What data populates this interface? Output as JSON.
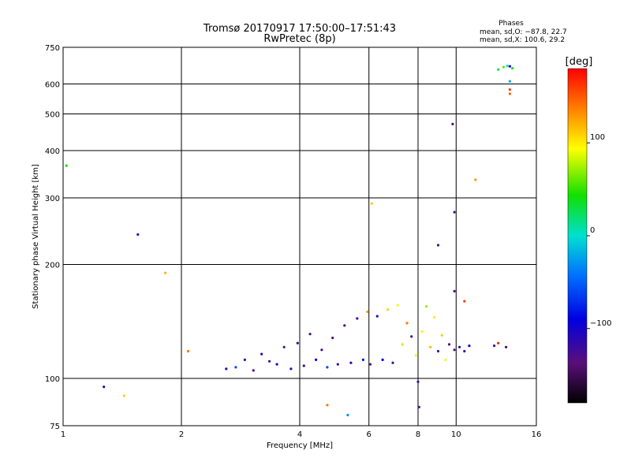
{
  "chart_data": {
    "type": "scatter",
    "title": "Tromsø 20170917 17:50:00–17:51:43",
    "subtitle": "RwPretec (8p)",
    "xlabel": "Frequency [MHz]",
    "ylabel": "Stationary phase Virtual Height [km]",
    "x_scale": "log",
    "y_scale": "log",
    "xlim": [
      1,
      16
    ],
    "ylim": [
      75,
      750
    ],
    "x_ticks": [
      1,
      2,
      4,
      6,
      8,
      10,
      16
    ],
    "x_tick_labels": [
      "1",
      "2",
      "4",
      "6",
      "8",
      "10",
      "16"
    ],
    "y_ticks": [
      75,
      100,
      200,
      300,
      400,
      500,
      600,
      750
    ],
    "y_tick_labels": [
      "75",
      "100",
      "200",
      "300",
      "400",
      "500",
      "600",
      "750"
    ],
    "grid": true,
    "phases_box": {
      "title": "Phases",
      "line_o": "mean, sd,O: −87.8, 22.7",
      "line_x": "mean, sd,X: 100.6, 29.2"
    },
    "colorbar": {
      "label": "[deg]",
      "ticks": [
        "100",
        "0",
        "−100"
      ],
      "tick_values": [
        100,
        0,
        -100
      ],
      "range": [
        -180,
        180
      ]
    },
    "series": [
      {
        "points": [
          [
            1.02,
            365,
            40
          ],
          [
            1.27,
            95,
            -110
          ],
          [
            1.55,
            240,
            -120
          ],
          [
            1.43,
            90,
            110
          ],
          [
            1.82,
            190,
            120
          ],
          [
            2.08,
            118,
            140
          ],
          [
            4.7,
            85,
            140
          ],
          [
            5.3,
            80,
            -30
          ],
          [
            6.1,
            290,
            110
          ],
          [
            8.0,
            98,
            -120
          ],
          [
            8.05,
            84,
            -130
          ],
          [
            9.0,
            225,
            -140
          ],
          [
            9.8,
            470,
            -140
          ],
          [
            9.9,
            275,
            -130
          ],
          [
            9.9,
            170,
            -140
          ],
          [
            10.5,
            160,
            160
          ],
          [
            11.2,
            335,
            130
          ],
          [
            12.8,
            655,
            20
          ],
          [
            13.2,
            665,
            60
          ],
          [
            13.5,
            670,
            0
          ],
          [
            13.7,
            668,
            -100
          ],
          [
            13.9,
            660,
            40
          ],
          [
            13.7,
            610,
            -20
          ],
          [
            13.7,
            580,
            160
          ],
          [
            13.7,
            565,
            150
          ],
          [
            12.5,
            122,
            -120
          ],
          [
            12.8,
            124,
            170
          ],
          [
            13.4,
            121,
            -150
          ],
          [
            2.6,
            106,
            -110
          ],
          [
            2.75,
            107,
            -60
          ],
          [
            2.9,
            112,
            -120
          ],
          [
            3.05,
            105,
            -130
          ],
          [
            3.2,
            116,
            -110
          ],
          [
            3.35,
            111,
            -120
          ],
          [
            3.5,
            109,
            -100
          ],
          [
            3.65,
            121,
            -130
          ],
          [
            3.8,
            106,
            -110
          ],
          [
            3.95,
            124,
            -120
          ],
          [
            4.1,
            108,
            -130
          ],
          [
            4.25,
            131,
            -140
          ],
          [
            4.4,
            112,
            -100
          ],
          [
            4.55,
            119,
            -120
          ],
          [
            4.7,
            107,
            -60
          ],
          [
            4.85,
            128,
            -130
          ],
          [
            5.0,
            109,
            -120
          ],
          [
            5.2,
            138,
            -140
          ],
          [
            5.4,
            110,
            -110
          ],
          [
            5.6,
            144,
            -120
          ],
          [
            5.8,
            112,
            -80
          ],
          [
            5.95,
            150,
            130
          ],
          [
            6.05,
            109,
            -130
          ],
          [
            6.3,
            146,
            -110
          ],
          [
            6.5,
            112,
            -90
          ],
          [
            6.7,
            152,
            110
          ],
          [
            6.9,
            110,
            -120
          ],
          [
            7.1,
            156,
            90
          ],
          [
            7.3,
            123,
            80
          ],
          [
            7.5,
            140,
            140
          ],
          [
            7.7,
            129,
            -130
          ],
          [
            7.9,
            115,
            90
          ],
          [
            8.2,
            133,
            100
          ],
          [
            8.4,
            155,
            70
          ],
          [
            8.6,
            121,
            120
          ],
          [
            8.8,
            145,
            100
          ],
          [
            9.0,
            118,
            -130
          ],
          [
            9.2,
            130,
            110
          ],
          [
            9.4,
            112,
            90
          ],
          [
            9.6,
            123,
            -140
          ],
          [
            9.9,
            119,
            -130
          ],
          [
            10.2,
            121,
            -110
          ],
          [
            10.5,
            118,
            -120
          ],
          [
            10.8,
            122,
            -90
          ]
        ]
      }
    ]
  }
}
